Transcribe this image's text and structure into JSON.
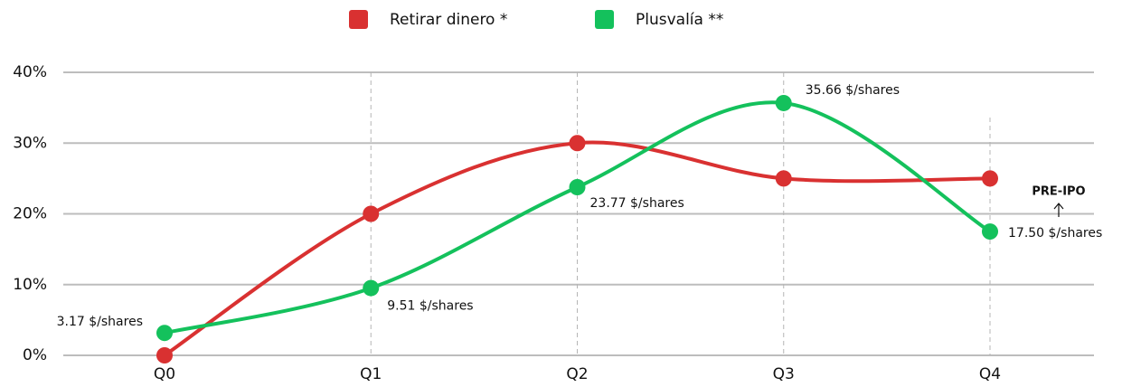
{
  "chart_data": {
    "type": "line",
    "categories": [
      "Q0",
      "Q1",
      "Q2",
      "Q3",
      "Q4"
    ],
    "series": [
      {
        "name": "Retirar dinero *",
        "color": "#d93131",
        "values": [
          0,
          20,
          30,
          25,
          25
        ]
      },
      {
        "name": "Plusvalía **",
        "color": "#14c15c",
        "values": [
          3.17,
          9.51,
          23.77,
          35.66,
          17.5
        ],
        "value_labels": [
          "3.17 $/shares",
          "9.51 $/shares",
          "23.77 $/shares",
          "35.66 $/shares",
          "17.50 $/shares"
        ]
      }
    ],
    "ylim": [
      0,
      40
    ],
    "yticks": [
      {
        "value": 0,
        "label": "0%"
      },
      {
        "value": 10,
        "label": "10%"
      },
      {
        "value": 20,
        "label": "20%"
      },
      {
        "value": 30,
        "label": "30%"
      },
      {
        "value": 40,
        "label": "40%"
      }
    ],
    "grid": true,
    "legend": "top",
    "annotations": [
      {
        "text": "PRE-IPO"
      }
    ]
  }
}
